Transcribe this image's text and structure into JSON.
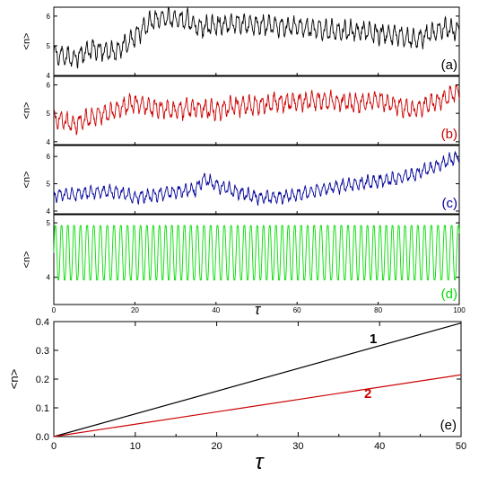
{
  "chart_data": [
    {
      "type": "line",
      "panel_label": "(a)",
      "ylabel": "<n>",
      "xlim": [
        0,
        100
      ],
      "ylim": [
        4,
        6.3
      ],
      "yticks": [
        "4",
        "5",
        "6"
      ],
      "series": [
        {
          "color": "#000000",
          "key_points": [
            [
              0,
              4.7
            ],
            [
              5,
              4.6
            ],
            [
              10,
              4.9
            ],
            [
              15,
              4.8
            ],
            [
              18,
              5.1
            ],
            [
              20,
              5.3
            ],
            [
              24,
              5.8
            ],
            [
              27,
              5.95
            ],
            [
              30,
              5.9
            ],
            [
              33,
              5.85
            ],
            [
              36,
              5.6
            ],
            [
              40,
              5.7
            ],
            [
              45,
              5.75
            ],
            [
              50,
              5.7
            ],
            [
              55,
              5.65
            ],
            [
              60,
              5.65
            ],
            [
              65,
              5.55
            ],
            [
              70,
              5.5
            ],
            [
              75,
              5.5
            ],
            [
              80,
              5.4
            ],
            [
              85,
              5.35
            ],
            [
              89,
              5.2
            ],
            [
              92,
              5.35
            ],
            [
              96,
              5.6
            ],
            [
              100,
              5.5
            ]
          ],
          "oscillation_amplitude": 0.35
        }
      ]
    },
    {
      "type": "line",
      "panel_label": "(b)",
      "ylabel": "<n>",
      "xlim": [
        0,
        100
      ],
      "ylim": [
        3.9,
        6.3
      ],
      "yticks": [
        "4",
        "5",
        "6"
      ],
      "series": [
        {
          "color": "#cc0000",
          "key_points": [
            [
              0,
              4.8
            ],
            [
              5,
              4.6
            ],
            [
              10,
              4.9
            ],
            [
              15,
              5.1
            ],
            [
              20,
              5.35
            ],
            [
              25,
              5.2
            ],
            [
              30,
              5.1
            ],
            [
              35,
              5.2
            ],
            [
              40,
              5.1
            ],
            [
              45,
              5.25
            ],
            [
              50,
              5.3
            ],
            [
              55,
              5.4
            ],
            [
              60,
              5.4
            ],
            [
              65,
              5.45
            ],
            [
              70,
              5.4
            ],
            [
              75,
              5.35
            ],
            [
              80,
              5.5
            ],
            [
              84,
              5.3
            ],
            [
              88,
              5.1
            ],
            [
              92,
              5.3
            ],
            [
              96,
              5.5
            ],
            [
              100,
              5.8
            ]
          ],
          "oscillation_amplitude": 0.35
        }
      ]
    },
    {
      "type": "line",
      "panel_label": "(c)",
      "ylabel": "<n>",
      "xlim": [
        0,
        100
      ],
      "ylim": [
        3.9,
        6.4
      ],
      "yticks": [
        "4",
        "5",
        "6"
      ],
      "series": [
        {
          "color": "#00009a",
          "key_points": [
            [
              0,
              4.6
            ],
            [
              5,
              4.6
            ],
            [
              10,
              4.7
            ],
            [
              15,
              4.7
            ],
            [
              20,
              4.5
            ],
            [
              25,
              4.6
            ],
            [
              30,
              4.7
            ],
            [
              35,
              4.8
            ],
            [
              37,
              5.2
            ],
            [
              40,
              4.95
            ],
            [
              45,
              4.7
            ],
            [
              50,
              4.5
            ],
            [
              55,
              4.5
            ],
            [
              60,
              4.6
            ],
            [
              65,
              4.75
            ],
            [
              70,
              4.9
            ],
            [
              75,
              5.0
            ],
            [
              80,
              5.1
            ],
            [
              85,
              5.2
            ],
            [
              90,
              5.4
            ],
            [
              95,
              5.7
            ],
            [
              100,
              6.0
            ]
          ],
          "oscillation_amplitude": 0.25
        }
      ]
    },
    {
      "type": "line",
      "panel_label": "(d)",
      "ylabel": "<n>",
      "xlim": [
        0,
        100
      ],
      "ylim": [
        3.5,
        5.15
      ],
      "yticks": [
        "4",
        "5"
      ],
      "xticks": [
        "0",
        "20",
        "40",
        "60",
        "80",
        "100"
      ],
      "xlabel": "τ",
      "series": [
        {
          "color": "#00dd00",
          "min_value": 3.95,
          "max_value": 4.95,
          "oscillation_period": 1.6
        }
      ]
    },
    {
      "type": "line",
      "panel_label": "(e)",
      "ylabel": "<n>",
      "xlabel": "τ",
      "xlim": [
        0,
        50
      ],
      "ylim": [
        0,
        0.4
      ],
      "xticks": [
        "0",
        "10",
        "20",
        "30",
        "40",
        "50"
      ],
      "yticks": [
        "0.0",
        "0.1",
        "0.2",
        "0.3",
        "0.4"
      ],
      "series": [
        {
          "name": "1",
          "color": "#000000",
          "x": [
            0,
            50
          ],
          "y": [
            0,
            0.395
          ]
        },
        {
          "name": "2",
          "color": "#cc0000",
          "x": [
            0,
            50
          ],
          "y": [
            0,
            0.215
          ]
        }
      ]
    }
  ]
}
